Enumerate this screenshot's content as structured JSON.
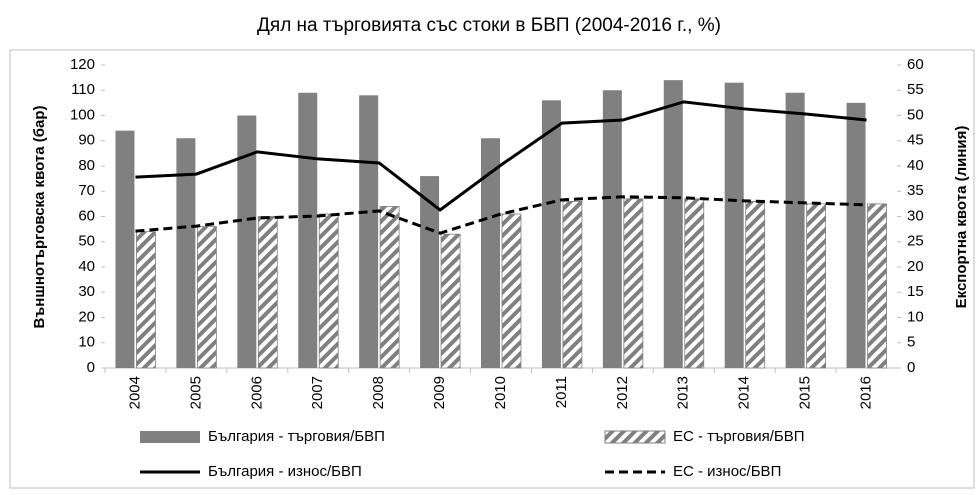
{
  "chart_data": {
    "type": "bar_line",
    "title": "Дял на търговията със стоки в БВП (2004-2016 г., %)",
    "y_label": "Външнотърговска квота (бар)",
    "y2_label": "Експортна квота (линия)",
    "categories": [
      "2004",
      "2005",
      "2006",
      "2007",
      "2008",
      "2009",
      "2010",
      "2011",
      "2012",
      "2013",
      "2014",
      "2015",
      "2016"
    ],
    "series": [
      {
        "name": "България - търговия/БВП",
        "type": "bar",
        "color": "#808080",
        "pattern": "solid",
        "values": [
          94,
          91,
          100,
          109,
          108,
          76,
          91,
          106,
          110,
          114,
          113,
          109,
          105
        ]
      },
      {
        "name": "ЕС  - търговия/БВП",
        "type": "bar",
        "color": "#808080",
        "pattern": "hatch",
        "values": [
          54,
          56,
          60,
          61,
          64,
          53,
          61,
          66,
          67,
          67,
          66,
          65,
          65
        ]
      },
      {
        "name": "България - износ/БВП",
        "type": "line",
        "axis": "y2",
        "color": "#000000",
        "dash": false,
        "values": [
          37.8,
          38.4,
          42.8,
          41.4,
          40.6,
          31.3,
          40.2,
          48.5,
          49.1,
          52.7,
          51.3,
          50.3,
          49.1
        ]
      },
      {
        "name": "ЕС  - износ/БВП",
        "type": "line",
        "axis": "y2",
        "color": "#000000",
        "dash": true,
        "values": [
          27.1,
          28.1,
          29.7,
          30.1,
          31.1,
          26.7,
          30.5,
          33.3,
          33.9,
          33.7,
          33.1,
          32.7,
          32.3
        ]
      }
    ],
    "ylim": [
      0,
      120
    ],
    "yticks": [
      0,
      10,
      20,
      30,
      40,
      50,
      60,
      70,
      80,
      90,
      100,
      110,
      120
    ],
    "y2lim": [
      0,
      60
    ],
    "y2ticks": [
      0,
      5,
      10,
      15,
      20,
      25,
      30,
      35,
      40,
      45,
      50,
      55,
      60
    ],
    "grid": false,
    "legend": "bottom"
  }
}
